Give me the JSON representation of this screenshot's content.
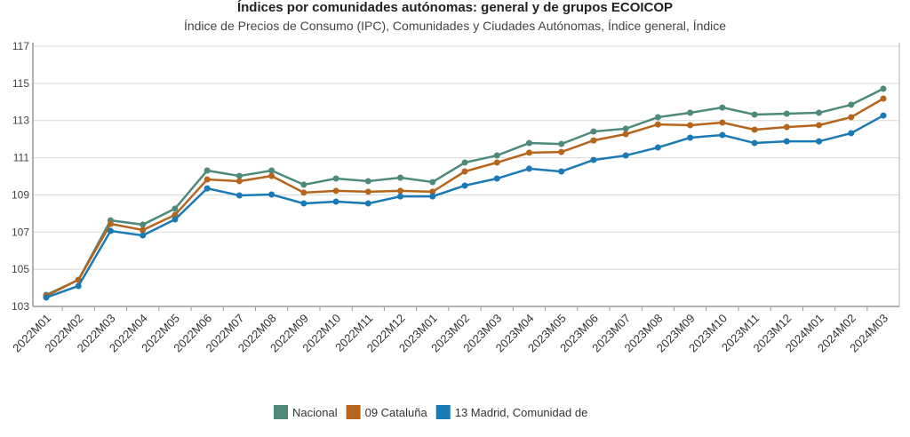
{
  "chart_data": {
    "type": "line",
    "title": "Índices por comunidades autónomas: general y de grupos ECOICOP",
    "subtitle": "Índice de Precios de Consumo (IPC), Comunidades y Ciudades Autónomas, Índice general, Índice",
    "ylim": [
      103,
      117
    ],
    "yticks": [
      103,
      105,
      107,
      109,
      111,
      113,
      115,
      117
    ],
    "grid": true,
    "legend_position": "bottom",
    "categories": [
      "2022M01",
      "2022M02",
      "2022M03",
      "2022M04",
      "2022M05",
      "2022M06",
      "2022M07",
      "2022M08",
      "2022M09",
      "2022M10",
      "2022M11",
      "2022M12",
      "2023M01",
      "2023M02",
      "2023M03",
      "2023M04",
      "2023M05",
      "2023M06",
      "2023M07",
      "2023M08",
      "2023M09",
      "2023M10",
      "2023M11",
      "2023M12",
      "2024M01",
      "2024M02",
      "2024M03"
    ],
    "series": [
      {
        "name": "Nacional",
        "color": "#4e8a7b",
        "values": [
          103.62,
          104.43,
          107.63,
          107.4,
          108.26,
          110.31,
          110.02,
          110.31,
          109.55,
          109.88,
          109.74,
          109.93,
          109.69,
          110.74,
          111.12,
          111.79,
          111.74,
          112.41,
          112.56,
          113.18,
          113.42,
          113.7,
          113.32,
          113.37,
          113.42,
          113.85,
          114.71
        ]
      },
      {
        "name": "09 Cataluña",
        "color": "#b5651d",
        "values": [
          103.57,
          104.43,
          107.44,
          107.11,
          107.92,
          109.83,
          109.74,
          110.02,
          109.12,
          109.22,
          109.17,
          109.22,
          109.17,
          110.26,
          110.74,
          111.27,
          111.31,
          111.93,
          112.27,
          112.79,
          112.75,
          112.89,
          112.51,
          112.65,
          112.75,
          113.18,
          114.18
        ]
      },
      {
        "name": "13 Madrid, Comunidad de",
        "color": "#1a7ab5",
        "values": [
          103.48,
          104.1,
          107.06,
          106.82,
          107.68,
          109.35,
          108.97,
          109.02,
          108.54,
          108.64,
          108.54,
          108.92,
          108.92,
          109.5,
          109.88,
          110.41,
          110.26,
          110.88,
          111.12,
          111.55,
          112.08,
          112.22,
          111.79,
          111.88,
          111.88,
          112.32,
          113.27
        ]
      }
    ]
  }
}
